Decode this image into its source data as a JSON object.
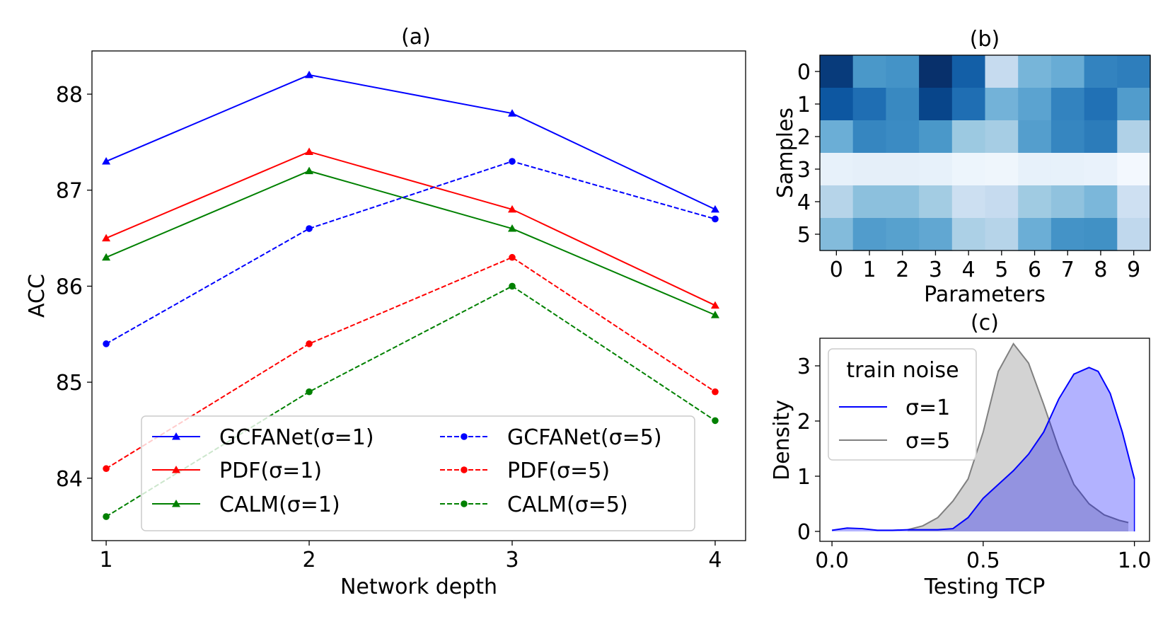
{
  "chart_data": [
    {
      "id": "a",
      "type": "line",
      "title": "(a)",
      "xlabel": "Network depth",
      "ylabel": "ACC",
      "x": [
        1,
        2,
        3,
        4
      ],
      "xticks": [
        "1",
        "2",
        "3",
        "4"
      ],
      "yticks": [
        "84",
        "85",
        "86",
        "87",
        "88"
      ],
      "xlim": [
        0.93,
        4.15
      ],
      "ylim": [
        83.35,
        88.45
      ],
      "series": [
        {
          "name": "GCFANet(σ=1)",
          "values": [
            87.3,
            88.2,
            87.8,
            86.8
          ],
          "color": "#0000ff",
          "dash": "solid",
          "marker": "triangle"
        },
        {
          "name": "PDF(σ=1)",
          "values": [
            86.5,
            87.4,
            86.8,
            85.8
          ],
          "color": "#ff0000",
          "dash": "solid",
          "marker": "triangle"
        },
        {
          "name": "CALM(σ=1)",
          "values": [
            86.3,
            87.2,
            86.6,
            85.7
          ],
          "color": "#008000",
          "dash": "solid",
          "marker": "triangle"
        },
        {
          "name": "GCFANet(σ=5)",
          "values": [
            85.4,
            86.6,
            87.3,
            86.7
          ],
          "color": "#0000ff",
          "dash": "dashed",
          "marker": "circle"
        },
        {
          "name": "PDF(σ=5)",
          "values": [
            84.1,
            85.4,
            86.3,
            84.9
          ],
          "color": "#ff0000",
          "dash": "dashed",
          "marker": "circle"
        },
        {
          "name": "CALM(σ=5)",
          "values": [
            83.6,
            84.9,
            86.0,
            84.6
          ],
          "color": "#008000",
          "dash": "dashed",
          "marker": "circle"
        }
      ],
      "legend": "lower-center"
    },
    {
      "id": "b",
      "type": "heatmap",
      "title": "(b)",
      "xlabel": "Parameters",
      "ylabel": "Samples",
      "xticks": [
        "0",
        "1",
        "2",
        "3",
        "4",
        "5",
        "6",
        "7",
        "8",
        "9"
      ],
      "yticks": [
        "0",
        "1",
        "2",
        "3",
        "4",
        "5"
      ],
      "colormap": "Blues",
      "values": [
        [
          0.96,
          0.6,
          0.62,
          1.0,
          0.82,
          0.25,
          0.47,
          0.51,
          0.68,
          0.7
        ],
        [
          0.85,
          0.76,
          0.66,
          0.92,
          0.76,
          0.48,
          0.55,
          0.68,
          0.75,
          0.58
        ],
        [
          0.5,
          0.67,
          0.65,
          0.6,
          0.38,
          0.35,
          0.57,
          0.67,
          0.71,
          0.32
        ],
        [
          0.08,
          0.09,
          0.09,
          0.08,
          0.05,
          0.04,
          0.08,
          0.08,
          0.07,
          0.02
        ],
        [
          0.3,
          0.42,
          0.42,
          0.36,
          0.22,
          0.25,
          0.37,
          0.41,
          0.46,
          0.21
        ],
        [
          0.44,
          0.58,
          0.56,
          0.53,
          0.33,
          0.3,
          0.5,
          0.62,
          0.63,
          0.27
        ]
      ]
    },
    {
      "id": "c",
      "type": "area",
      "title": "(c)",
      "xlabel": "Testing TCP",
      "ylabel": "Density",
      "xticks": [
        "0.0",
        "0.5",
        "1.0"
      ],
      "yticks": [
        "0",
        "1",
        "2",
        "3"
      ],
      "xlim": [
        -0.04,
        1.05
      ],
      "ylim": [
        -0.18,
        3.5
      ],
      "legend_title": "train noise",
      "legend": "upper-left",
      "series": [
        {
          "name": "σ=5",
          "color": "#808080",
          "fill": "#d3d3d3",
          "x": [
            0.25,
            0.3,
            0.35,
            0.4,
            0.45,
            0.5,
            0.55,
            0.6,
            0.65,
            0.7,
            0.75,
            0.8,
            0.85,
            0.9,
            0.95,
            0.98
          ],
          "values": [
            0.03,
            0.1,
            0.25,
            0.55,
            0.95,
            1.8,
            2.9,
            3.4,
            3.05,
            2.3,
            1.5,
            0.85,
            0.5,
            0.3,
            0.2,
            0.16
          ]
        },
        {
          "name": "σ=1",
          "color": "#0000ff",
          "fill": "#0000ff",
          "x": [
            0.0,
            0.05,
            0.1,
            0.15,
            0.2,
            0.25,
            0.3,
            0.35,
            0.4,
            0.45,
            0.5,
            0.55,
            0.6,
            0.65,
            0.7,
            0.75,
            0.8,
            0.85,
            0.88,
            0.92,
            0.96,
            1.0
          ],
          "values": [
            0.02,
            0.06,
            0.05,
            0.02,
            0.02,
            0.03,
            0.03,
            0.03,
            0.05,
            0.25,
            0.6,
            0.85,
            1.1,
            1.4,
            1.8,
            2.4,
            2.85,
            2.97,
            2.9,
            2.5,
            1.8,
            0.95
          ]
        }
      ]
    }
  ]
}
